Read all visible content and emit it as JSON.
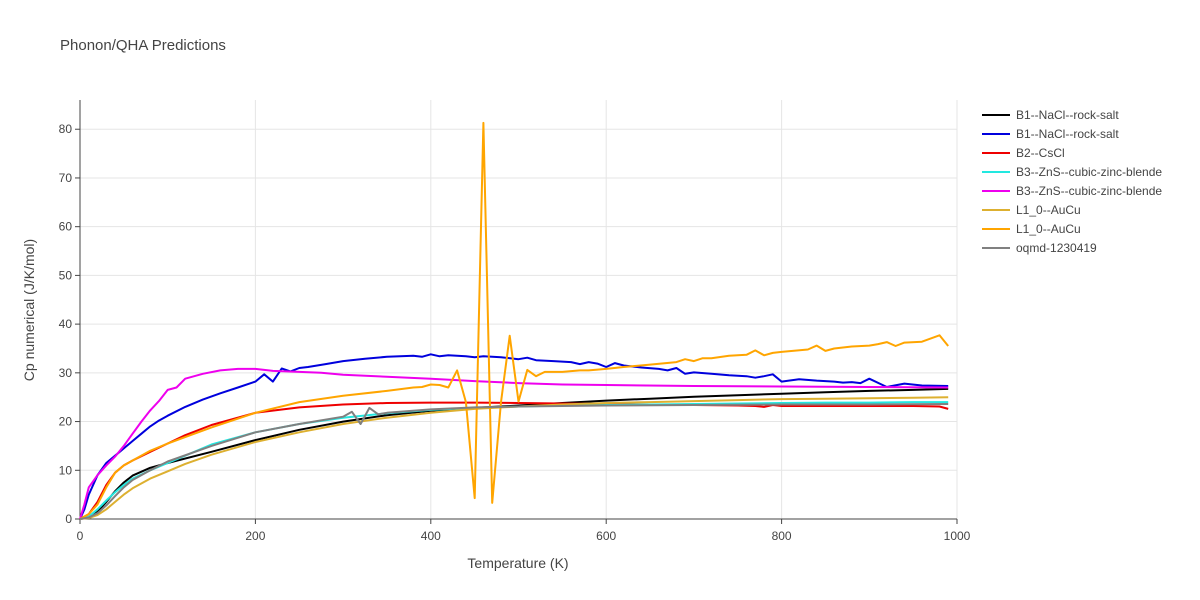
{
  "chart_data": {
    "type": "line",
    "title": "Phonon/QHA Predictions",
    "xlabel": "Temperature (K)",
    "ylabel": "Cp numerical (J/K/mol)",
    "xlim": [
      0,
      1000
    ],
    "ylim": [
      0,
      86
    ],
    "xticks": [
      0,
      200,
      400,
      600,
      800,
      1000
    ],
    "yticks": [
      0,
      10,
      20,
      30,
      40,
      50,
      60,
      70,
      80
    ],
    "grid": true,
    "legend_position": "right",
    "series": [
      {
        "name": "B1--NaCl--rock-salt",
        "color": "#000000",
        "x": [
          0,
          10,
          20,
          30,
          40,
          50,
          60,
          80,
          100,
          150,
          200,
          250,
          300,
          350,
          400,
          450,
          500,
          550,
          600,
          650,
          700,
          750,
          800,
          850,
          900,
          950,
          990
        ],
        "y": [
          0,
          0.3,
          1.5,
          3.5,
          5.7,
          7.5,
          8.9,
          10.5,
          11.5,
          13.8,
          16.2,
          18.3,
          20.0,
          21.3,
          22.2,
          22.8,
          23.3,
          23.8,
          24.3,
          24.7,
          25.1,
          25.4,
          25.7,
          26.0,
          26.3,
          26.5,
          26.7
        ]
      },
      {
        "name": "B1--NaCl--rock-salt",
        "color": "#0000dd",
        "x": [
          0,
          5,
          10,
          20,
          30,
          40,
          50,
          60,
          70,
          80,
          90,
          100,
          120,
          140,
          160,
          180,
          200,
          210,
          220,
          230,
          240,
          250,
          260,
          280,
          300,
          325,
          350,
          380,
          390,
          400,
          410,
          420,
          440,
          450,
          460,
          480,
          500,
          510,
          520,
          540,
          560,
          570,
          580,
          590,
          600,
          610,
          620,
          640,
          660,
          670,
          680,
          690,
          700,
          720,
          740,
          760,
          770,
          780,
          790,
          800,
          820,
          840,
          860,
          870,
          880,
          890,
          900,
          920,
          940,
          960,
          990
        ],
        "y": [
          0,
          2,
          5,
          9,
          11.5,
          13,
          14.5,
          16,
          17.5,
          19,
          20.2,
          21.2,
          23,
          24.5,
          25.8,
          27,
          28.2,
          29.7,
          28.2,
          30.9,
          30.3,
          31,
          31.2,
          31.8,
          32.4,
          32.9,
          33.3,
          33.5,
          33.3,
          33.8,
          33.4,
          33.6,
          33.4,
          33.2,
          33.4,
          33.2,
          32.8,
          33.1,
          32.6,
          32.4,
          32.2,
          31.8,
          32.2,
          31.9,
          31.2,
          32,
          31.5,
          31.1,
          30.8,
          30.5,
          31,
          29.8,
          30.1,
          29.8,
          29.5,
          29.3,
          29.0,
          29.3,
          29.7,
          28.2,
          28.7,
          28.4,
          28.2,
          28.0,
          28.1,
          27.9,
          28.8,
          27.1,
          27.8,
          27.4,
          27.3
        ]
      },
      {
        "name": "B2--CsCl",
        "color": "#ee0000",
        "x": [
          0,
          10,
          20,
          30,
          40,
          50,
          60,
          80,
          100,
          120,
          150,
          200,
          250,
          300,
          350,
          400,
          450,
          500,
          550,
          600,
          650,
          700,
          750,
          770,
          780,
          790,
          800,
          850,
          900,
          950,
          980,
          990
        ],
        "y": [
          0,
          1,
          3.5,
          7,
          9.5,
          11,
          12,
          13.8,
          15.5,
          17.2,
          19.3,
          21.8,
          22.9,
          23.5,
          23.8,
          23.9,
          23.9,
          23.8,
          23.7,
          23.6,
          23.5,
          23.4,
          23.3,
          23.2,
          23.0,
          23.4,
          23.2,
          23.2,
          23.2,
          23.2,
          23.1,
          22.6
        ]
      },
      {
        "name": "B3--ZnS--cubic-zinc-blende",
        "color": "#22e8e0",
        "x": [
          0,
          10,
          20,
          30,
          40,
          50,
          60,
          80,
          100,
          120,
          150,
          200,
          250,
          300,
          350,
          400,
          450,
          500,
          550,
          600,
          650,
          700,
          750,
          800,
          850,
          900,
          950,
          990
        ],
        "y": [
          0,
          0.5,
          2,
          3.8,
          5.5,
          7,
          8.3,
          10,
          11.5,
          13,
          15.3,
          17.8,
          19.5,
          20.8,
          21.7,
          22.4,
          22.8,
          23.1,
          23.3,
          23.4,
          23.5,
          23.6,
          23.7,
          23.8,
          23.9,
          23.9,
          24.0,
          24.0
        ]
      },
      {
        "name": "B3--ZnS--cubic-zinc-blende",
        "color": "#ee00ee",
        "x": [
          0,
          5,
          10,
          20,
          30,
          40,
          50,
          60,
          70,
          80,
          90,
          100,
          110,
          120,
          140,
          160,
          180,
          200,
          220,
          250,
          275,
          300,
          350,
          400,
          450,
          500,
          550,
          600,
          700,
          800,
          900,
          990
        ],
        "y": [
          0,
          3,
          6.5,
          9,
          11,
          12.8,
          15,
          17.5,
          20,
          22.3,
          24.2,
          26.5,
          27.0,
          28.8,
          29.8,
          30.5,
          30.8,
          30.8,
          30.4,
          30.2,
          30.0,
          29.6,
          29.2,
          28.8,
          28.3,
          27.9,
          27.6,
          27.5,
          27.3,
          27.2,
          27.1,
          27.0
        ]
      },
      {
        "name": "L1_0--AuCu",
        "color": "#ddb030",
        "x": [
          0,
          10,
          20,
          30,
          40,
          50,
          60,
          80,
          100,
          120,
          150,
          200,
          250,
          300,
          350,
          400,
          450,
          500,
          550,
          600,
          650,
          700,
          750,
          800,
          850,
          900,
          950,
          990
        ],
        "y": [
          0,
          0.2,
          0.8,
          2.0,
          3.5,
          5.0,
          6.3,
          8.3,
          9.8,
          11.3,
          13.2,
          15.8,
          17.8,
          19.5,
          20.8,
          21.8,
          22.6,
          23.1,
          23.5,
          23.8,
          24.0,
          24.2,
          24.4,
          24.6,
          24.7,
          24.8,
          24.9,
          25.0
        ]
      },
      {
        "name": "L1_0--AuCu",
        "color": "#ffa500",
        "x": [
          0,
          10,
          20,
          30,
          40,
          50,
          60,
          80,
          100,
          120,
          150,
          200,
          250,
          300,
          350,
          380,
          390,
          400,
          410,
          420,
          430,
          440,
          450,
          460,
          470,
          480,
          490,
          500,
          510,
          520,
          530,
          550,
          570,
          580,
          600,
          620,
          650,
          680,
          690,
          700,
          710,
          720,
          740,
          760,
          770,
          780,
          790,
          800,
          830,
          840,
          850,
          860,
          880,
          900,
          910,
          920,
          930,
          940,
          960,
          980,
          990
        ],
        "y": [
          0,
          1,
          3,
          6.5,
          9.5,
          11,
          12,
          14,
          15.5,
          16.8,
          18.8,
          21.8,
          24,
          25.3,
          26.3,
          27.0,
          27.1,
          27.6,
          27.5,
          27.0,
          30.5,
          24,
          4.3,
          81.3,
          3.3,
          24,
          37.6,
          24.1,
          30.6,
          29.3,
          30.2,
          30.2,
          30.5,
          30.5,
          30.8,
          31.2,
          31.7,
          32.2,
          32.8,
          32.4,
          33.0,
          33.0,
          33.5,
          33.7,
          34.6,
          33.6,
          34.1,
          34.3,
          34.8,
          35.6,
          34.5,
          35.0,
          35.4,
          35.6,
          35.9,
          36.3,
          35.5,
          36.2,
          36.4,
          37.7,
          35.5
        ]
      },
      {
        "name": "oqmd-1230419",
        "color": "#808080",
        "x": [
          0,
          10,
          20,
          30,
          40,
          50,
          60,
          80,
          100,
          150,
          200,
          250,
          300,
          310,
          320,
          330,
          340,
          350,
          400,
          450,
          500,
          600,
          700,
          800,
          900,
          990
        ],
        "y": [
          0,
          0.3,
          1.2,
          2.8,
          4.7,
          6.5,
          8.0,
          10.0,
          11.8,
          15.0,
          17.8,
          19.5,
          21.0,
          22.0,
          19.5,
          22.8,
          21.5,
          21.8,
          22.5,
          22.9,
          23.1,
          23.3,
          23.4,
          23.5,
          23.5,
          23.6
        ]
      }
    ]
  }
}
